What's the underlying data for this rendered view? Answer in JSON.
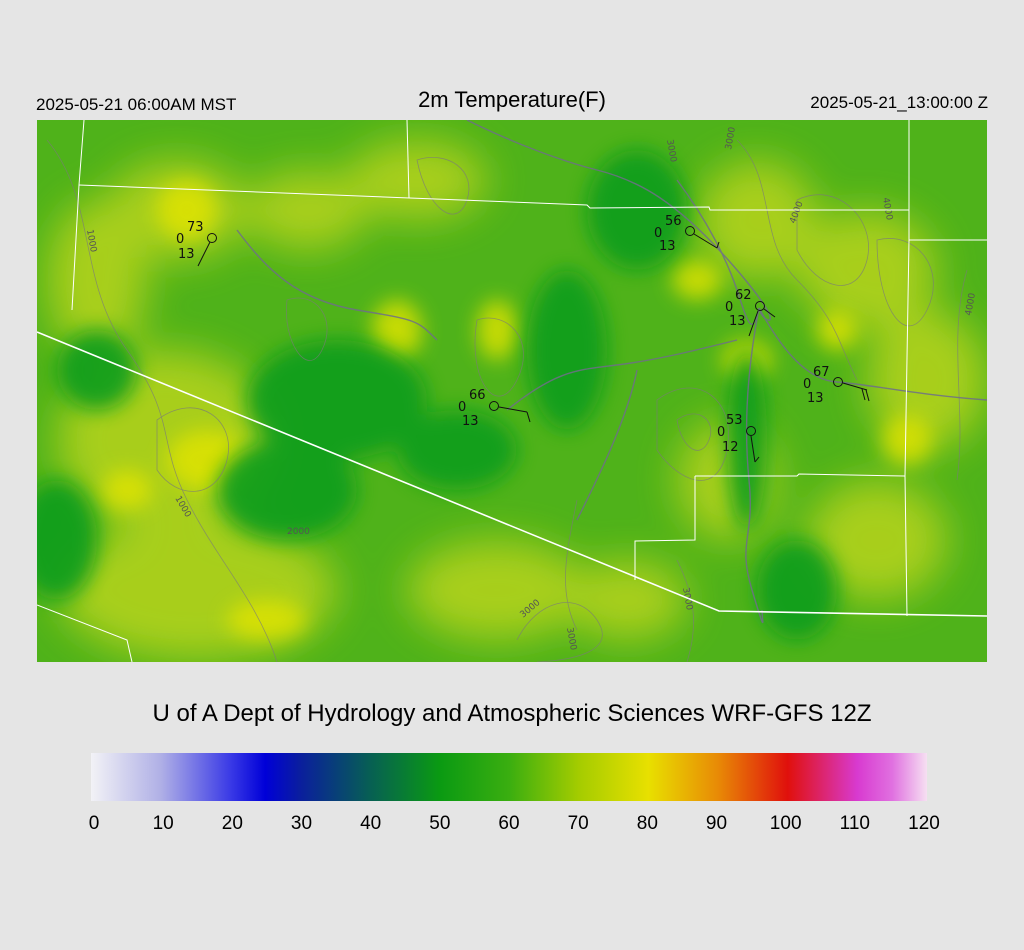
{
  "header": {
    "local_time": "2025-05-21 06:00AM MST",
    "title": "2m Temperature(F)",
    "utc_time": "2025-05-21_13:00:00 Z"
  },
  "credit": "U of A Dept of Hydrology and Atmospheric Sciences WRF-GFS 12Z",
  "colors": {
    "background": "#e5e5e5",
    "field_base": "#4fb21a",
    "boundary": "#ffffff",
    "contour": "#7a7a7a",
    "river": "#6f6f8a",
    "station": "#111111"
  },
  "colorbar": {
    "min": 0,
    "max": 120,
    "ticks": [
      "0",
      "10",
      "20",
      "30",
      "40",
      "50",
      "60",
      "70",
      "80",
      "90",
      "100",
      "110",
      "120"
    ],
    "stops": [
      {
        "value": 0,
        "color": "#f2f2f6"
      },
      {
        "value": 10,
        "color": "#b0b0e6"
      },
      {
        "value": 20,
        "color": "#3a3ae6"
      },
      {
        "value": 25,
        "color": "#0000d8"
      },
      {
        "value": 30,
        "color": "#0a1e9e"
      },
      {
        "value": 40,
        "color": "#075f54"
      },
      {
        "value": 50,
        "color": "#0a9a12"
      },
      {
        "value": 60,
        "color": "#3aae10"
      },
      {
        "value": 70,
        "color": "#a4cc00"
      },
      {
        "value": 80,
        "color": "#e8e000"
      },
      {
        "value": 90,
        "color": "#e88a06"
      },
      {
        "value": 100,
        "color": "#e0100c"
      },
      {
        "value": 110,
        "color": "#d83ad0"
      },
      {
        "value": 115,
        "color": "#e070e0"
      },
      {
        "value": 120,
        "color": "#f6e0f2"
      }
    ]
  },
  "contour_labels": [
    "1000",
    "1000",
    "2000",
    "3000",
    "3000",
    "4000",
    "4000",
    "4000",
    "3000",
    "3000",
    "3000"
  ],
  "stations": [
    {
      "name": "station-nw",
      "temp": "73",
      "cloud": "0",
      "wind": "13"
    },
    {
      "name": "station-north",
      "temp": "56",
      "cloud": "0",
      "wind": "13"
    },
    {
      "name": "station-ne",
      "temp": "62",
      "cloud": "0",
      "wind": "13"
    },
    {
      "name": "station-central",
      "temp": "66",
      "cloud": "0",
      "wind": "13"
    },
    {
      "name": "station-east",
      "temp": "67",
      "cloud": "0",
      "wind": "13"
    },
    {
      "name": "station-se",
      "temp": "53",
      "cloud": "0",
      "wind": "12"
    }
  ]
}
